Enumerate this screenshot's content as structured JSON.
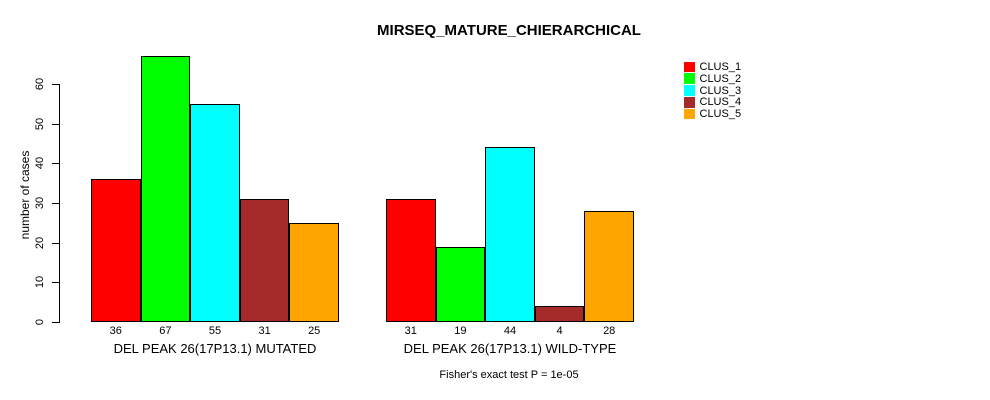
{
  "chart_data": {
    "type": "bar",
    "title": "MIRSEQ_MATURE_CHIERARCHICAL",
    "ylabel": "number of cases",
    "xlabel": "",
    "footnote": "Fisher's exact test P = 1e-05",
    "yticks": [
      0,
      10,
      20,
      30,
      40,
      50,
      60
    ],
    "ylim": [
      0,
      60
    ],
    "grid": false,
    "legend_position": "top-right",
    "categories": [
      "DEL PEAK 26(17P13.1) MUTATED",
      "DEL PEAK 26(17P13.1) WILD-TYPE"
    ],
    "series": [
      {
        "name": "CLUS_1",
        "color": "#FF0000",
        "values": [
          36,
          31
        ]
      },
      {
        "name": "CLUS_2",
        "color": "#00FF00",
        "values": [
          67,
          19
        ]
      },
      {
        "name": "CLUS_3",
        "color": "#00FFFF",
        "values": [
          55,
          44
        ]
      },
      {
        "name": "CLUS_4",
        "color": "#A52A2A",
        "values": [
          31,
          4
        ]
      },
      {
        "name": "CLUS_5",
        "color": "#FFA500",
        "values": [
          25,
          28
        ]
      }
    ],
    "bar_value_labels_shown": true
  }
}
